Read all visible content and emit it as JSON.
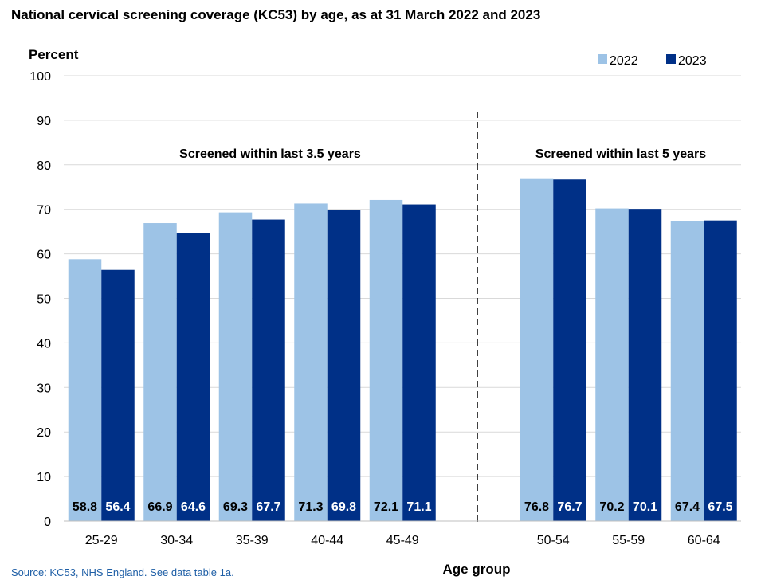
{
  "chart_data": {
    "type": "bar",
    "title": "National cervical screening coverage (KC53) by age, as at 31 March 2022 and 2023",
    "ylabel": "Percent",
    "xlabel": "Age group",
    "ylim": [
      0,
      100
    ],
    "yticks": [
      0,
      10,
      20,
      30,
      40,
      50,
      60,
      70,
      80,
      90,
      100
    ],
    "grid": true,
    "legend_position": "top-right",
    "categories": [
      "25-29",
      "30-34",
      "35-39",
      "40-44",
      "45-49",
      "50-54",
      "55-59",
      "60-64"
    ],
    "series": [
      {
        "name": "2022",
        "color": "#9dc3e6",
        "label_color": "#000000",
        "values": [
          58.8,
          66.9,
          69.3,
          71.3,
          72.1,
          76.8,
          70.2,
          67.4
        ]
      },
      {
        "name": "2023",
        "color": "#003087",
        "label_color": "#ffffff",
        "values": [
          56.4,
          64.6,
          67.7,
          69.8,
          71.1,
          76.7,
          70.1,
          67.5
        ]
      }
    ],
    "data_labels": [
      [
        "58.8",
        "66.9",
        "69.3",
        "71.3",
        "72.1",
        "76.8",
        "70.2",
        "67.4"
      ],
      [
        "56.4",
        "64.6",
        "67.7",
        "69.8",
        "71.1",
        "76.7",
        "70.1",
        "67.5"
      ]
    ],
    "group_annotations": [
      {
        "text": "Screened within last 3.5 years",
        "categories": [
          "25-29",
          "30-34",
          "35-39",
          "40-44",
          "45-49"
        ]
      },
      {
        "text": "Screened within last 5 years",
        "categories": [
          "50-54",
          "55-59",
          "60-64"
        ]
      }
    ],
    "divider": "dashed line between 45-49 and 50-54"
  },
  "source": "Source: KC53, NHS England. See data table 1a."
}
